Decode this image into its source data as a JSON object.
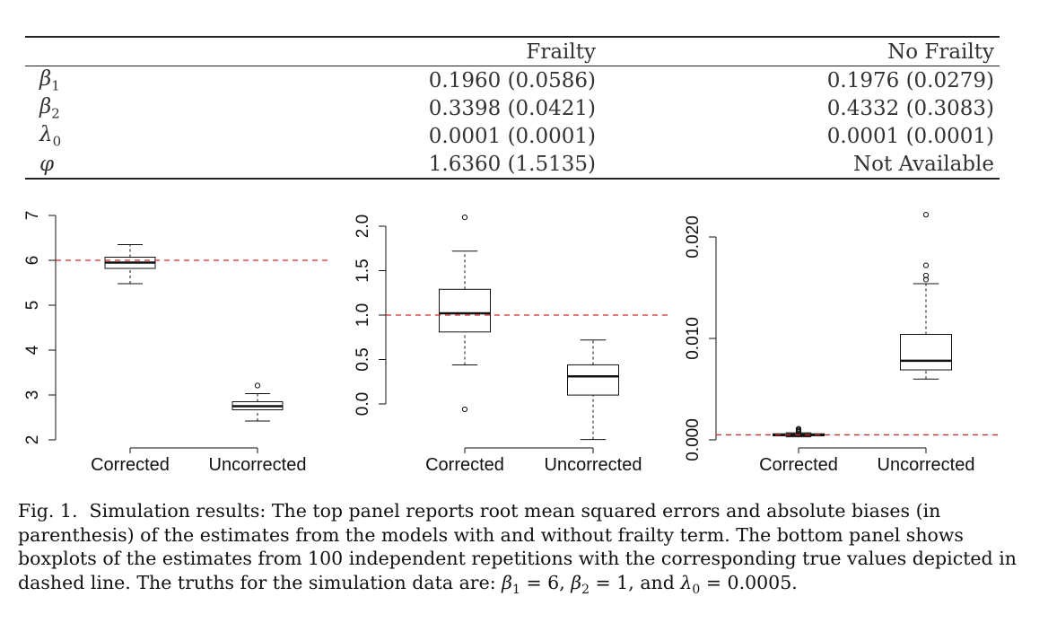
{
  "table": {
    "headers": [
      "",
      "Frailty",
      "No Frailty"
    ],
    "rows": [
      {
        "param": "β",
        "sub": "1",
        "frailty": "0.1960 (0.0586)",
        "no_frailty": "0.1976 (0.0279)"
      },
      {
        "param": "β",
        "sub": "2",
        "frailty": "0.3398 (0.0421)",
        "no_frailty": "0.4332 (0.3083)"
      },
      {
        "param": "λ",
        "sub": "0",
        "frailty": "0.0001 (0.0001)",
        "no_frailty": "0.0001 (0.0001)"
      },
      {
        "param": "φ",
        "sub": "",
        "frailty": "1.6360 (1.5135)",
        "no_frailty": "Not Available"
      }
    ]
  },
  "chart_data": [
    {
      "type": "boxplot",
      "categories": [
        "Corrected",
        "Uncorrected"
      ],
      "y_ticks": [
        "2",
        "3",
        "4",
        "5",
        "6",
        "7"
      ],
      "ylim": [
        2,
        7
      ],
      "reference_line": 6,
      "boxes": [
        {
          "whisker_low": 5.48,
          "q1": 5.82,
          "median": 5.95,
          "q3": 6.07,
          "whisker_high": 6.35,
          "outliers": []
        },
        {
          "whisker_low": 2.42,
          "q1": 2.67,
          "median": 2.75,
          "q3": 2.85,
          "whisker_high": 3.03,
          "outliers": [
            3.21
          ]
        }
      ]
    },
    {
      "type": "boxplot",
      "categories": [
        "Corrected",
        "Uncorrected"
      ],
      "y_ticks": [
        "0.0",
        "0.5",
        "1.0",
        "1.5",
        "2.0"
      ],
      "ylim": [
        -0.4,
        2.1
      ],
      "reference_line": 1,
      "boxes": [
        {
          "whisker_low": 0.44,
          "q1": 0.81,
          "median": 1.02,
          "q3": 1.29,
          "whisker_high": 1.72,
          "outliers": [
            -0.06,
            2.1
          ]
        },
        {
          "whisker_low": -0.4,
          "q1": 0.1,
          "median": 0.31,
          "q3": 0.44,
          "whisker_high": 0.72,
          "outliers": []
        }
      ]
    },
    {
      "type": "boxplot",
      "categories": [
        "Corrected",
        "Uncorrected"
      ],
      "y_ticks": [
        "0.000",
        "0.010",
        "0.020"
      ],
      "ylim": [
        0,
        0.022
      ],
      "reference_line": 0.0005,
      "boxes": [
        {
          "whisker_low": 0.0003,
          "q1": 0.0004,
          "median": 0.0005,
          "q3": 0.0006,
          "whisker_high": 0.0007,
          "outliers": [
            0.0008,
            0.0009,
            0.001,
            0.0011
          ]
        },
        {
          "whisker_low": 0.006,
          "q1": 0.0069,
          "median": 0.0078,
          "q3": 0.0104,
          "whisker_high": 0.0154,
          "outliers": [
            0.0158,
            0.0162,
            0.0172,
            0.0222
          ]
        }
      ]
    }
  ],
  "caption": {
    "label": "Fig. 1.",
    "text": "Simulation results: The top panel reports root mean squared errors and absolute biases (in parenthesis) of the estimates from the models with and without frailty term. The bottom panel shows boxplots of the estimates from 100 independent repetitions with the corresponding true values depicted in dashed line. The truths for the simulation data are:",
    "truths": [
      {
        "sym": "β",
        "sub": "1",
        "eq": " = 6, "
      },
      {
        "sym": "β",
        "sub": "2",
        "eq": " = 1, and "
      },
      {
        "sym": "λ",
        "sub": "0",
        "eq": " = 0.0005."
      }
    ]
  },
  "colors": {
    "reference_line": "#d62728",
    "ink": "#111111"
  }
}
